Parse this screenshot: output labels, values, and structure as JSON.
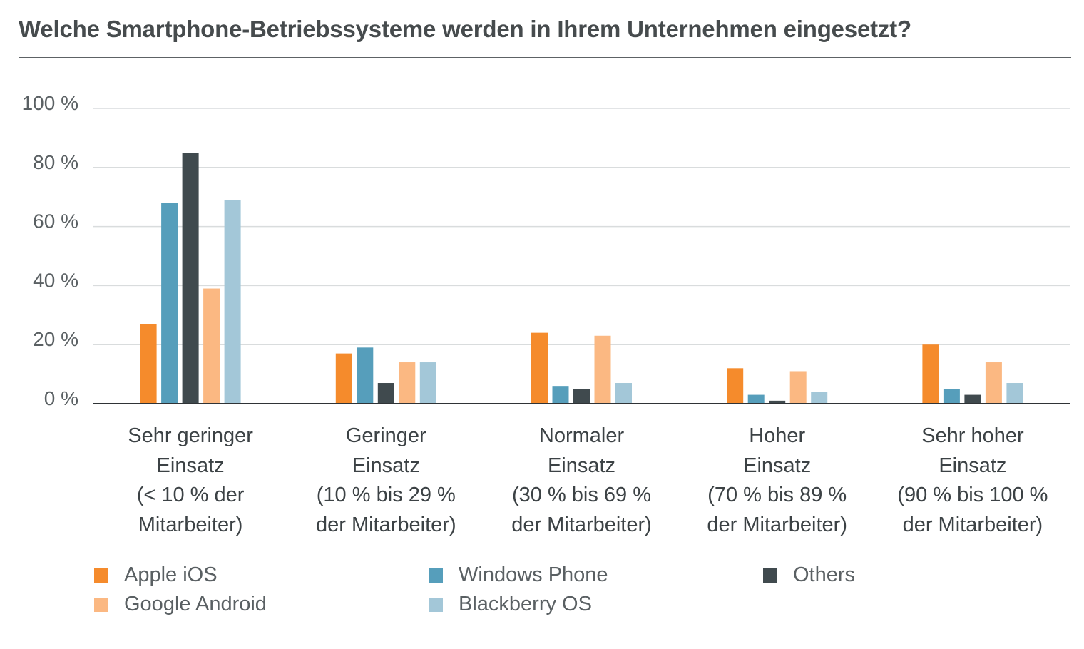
{
  "title": "Welche Smartphone-Betriebssysteme werden in Ihrem Unternehmen eingesetzt?",
  "colors": {
    "apple_ios": "#f58b2c",
    "windows_phone": "#569ebb",
    "others": "#404a4e",
    "google_android": "#fbb882",
    "blackberry_os": "#a3c7d8",
    "grid": "#d9dcdd",
    "axis": "#2f3336"
  },
  "legend": [
    {
      "name": "Apple iOS",
      "color": "#f58b2c"
    },
    {
      "name": "Windows Phone",
      "color": "#569ebb"
    },
    {
      "name": "Others",
      "color": "#404a4e"
    },
    {
      "name": "Google Android",
      "color": "#fbb882"
    },
    {
      "name": "Blackberry OS",
      "color": "#a3c7d8"
    }
  ],
  "chart_data": {
    "type": "bar",
    "title": "Welche Smartphone-Betriebssysteme werden in Ihrem Unternehmen eingesetzt?",
    "xlabel": "",
    "ylabel": "",
    "ylim": [
      0,
      100
    ],
    "yticks": [
      "0 %",
      "20 %",
      "40 %",
      "60 %",
      "80 %",
      "100 %"
    ],
    "grid": true,
    "legend_position": "bottom",
    "categories": [
      "Sehr geringer\nEinsatz\n(< 10 % der\nMitarbeiter)",
      "Geringer\nEinsatz\n(10 % bis 29 %\nder Mitarbeiter)",
      "Normaler\nEinsatz\n(30 % bis 69 %\nder Mitarbeiter)",
      "Hoher\nEinsatz\n(70 % bis 89 %\nder Mitarbeiter)",
      "Sehr hoher\nEinsatz\n(90 % bis 100 %\nder Mitarbeiter)"
    ],
    "series": [
      {
        "name": "Apple iOS",
        "color": "#f58b2c",
        "values": [
          27,
          17,
          24,
          12,
          20
        ]
      },
      {
        "name": "Windows Phone",
        "color": "#569ebb",
        "values": [
          68,
          19,
          6,
          3,
          5
        ]
      },
      {
        "name": "Others",
        "color": "#404a4e",
        "values": [
          85,
          7,
          5,
          1,
          3
        ]
      },
      {
        "name": "Google Android",
        "color": "#fbb882",
        "values": [
          39,
          14,
          23,
          11,
          14
        ]
      },
      {
        "name": "Blackberry OS",
        "color": "#a3c7d8",
        "values": [
          69,
          14,
          7,
          4,
          7
        ]
      }
    ]
  }
}
